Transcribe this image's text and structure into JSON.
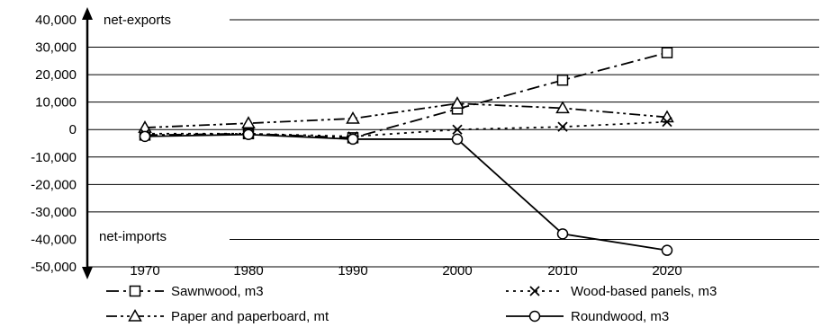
{
  "chart_data": {
    "type": "line",
    "title": "",
    "xlabel": "",
    "ylabel": "",
    "categories": [
      "1970",
      "1980",
      "1990",
      "2000",
      "2010",
      "2020"
    ],
    "ylim": [
      -50000,
      40000
    ],
    "yticks": [
      40000,
      30000,
      20000,
      10000,
      0,
      -10000,
      -20000,
      -30000,
      -40000,
      -50000
    ],
    "ytick_labels": [
      "40,000",
      "30,000",
      "20,000",
      "10,000",
      "0",
      "-10,000",
      "-20,000",
      "-30,000",
      "-40,000",
      "-50,000"
    ],
    "grid": true,
    "legend_position": "bottom",
    "annotations": {
      "top": "net-exports",
      "bottom": "net-imports"
    },
    "series": [
      {
        "name": "Sawnwood, m3",
        "marker": "square",
        "line_style": "long-dash-dot",
        "values": [
          -2000,
          -1500,
          -3000,
          7500,
          18000,
          28000
        ]
      },
      {
        "name": "Paper and paperboard, mt",
        "marker": "triangle",
        "line_style": "dash-dot-dot",
        "values": [
          700,
          2300,
          4000,
          9500,
          7800,
          4500
        ]
      },
      {
        "name": "Wood-based panels, m3",
        "marker": "cross",
        "line_style": "dotted",
        "values": [
          -1500,
          -1500,
          -2500,
          0,
          1000,
          2800
        ]
      },
      {
        "name": "Roundwood, m3",
        "marker": "circle",
        "line_style": "solid",
        "values": [
          -2500,
          -1800,
          -3500,
          -3500,
          -38000,
          -44000
        ]
      }
    ]
  }
}
